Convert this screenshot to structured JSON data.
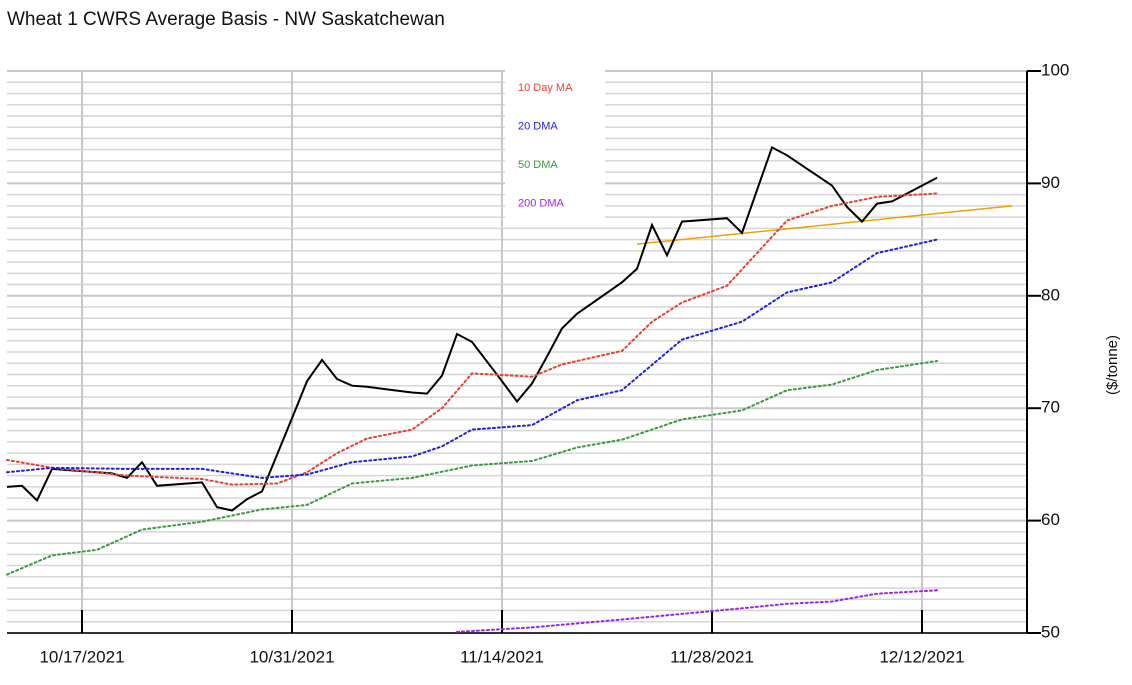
{
  "chart_data": {
    "type": "line",
    "title": "Wheat 1 CWRS Average Basis - NW Saskatchewan",
    "y_axis_label": "($/tonne)",
    "xlim": [
      "2021-10-12",
      "2021-12-19"
    ],
    "xticks": [
      {
        "value": "2021-10-17",
        "label": "10/17/2021"
      },
      {
        "value": "2021-10-31",
        "label": "10/31/2021"
      },
      {
        "value": "2021-11-14",
        "label": "11/14/2021"
      },
      {
        "value": "2021-11-28",
        "label": "11/28/2021"
      },
      {
        "value": "2021-12-12",
        "label": "12/12/2021"
      }
    ],
    "ylim": [
      50,
      100
    ],
    "yticks": [
      50,
      60,
      70,
      80,
      90,
      100
    ],
    "grid": true,
    "minor_grid": true,
    "legend": "top",
    "series": [
      {
        "color": "#000000",
        "style": "solid",
        "x": [
          "2021-10-12",
          "2021-10-13",
          "2021-10-14",
          "2021-10-15",
          "2021-10-19",
          "2021-10-20",
          "2021-10-21",
          "2021-10-22",
          "2021-10-25",
          "2021-10-26",
          "2021-10-27",
          "2021-10-28",
          "2021-10-29",
          "2021-10-31",
          "2021-11-01",
          "2021-11-02",
          "2021-11-03",
          "2021-11-04",
          "2021-11-05",
          "2021-11-08",
          "2021-11-09",
          "2021-11-10",
          "2021-11-11",
          "2021-11-12",
          "2021-11-14",
          "2021-11-15",
          "2021-11-16",
          "2021-11-17",
          "2021-11-18",
          "2021-11-19",
          "2021-11-22",
          "2021-11-23",
          "2021-11-24",
          "2021-11-25",
          "2021-11-26",
          "2021-11-29",
          "2021-11-30",
          "2021-12-02",
          "2021-12-03",
          "2021-12-06",
          "2021-12-07",
          "2021-12-08",
          "2021-12-09",
          "2021-12-10",
          "2021-12-13"
        ],
        "values": [
          63.0,
          63.1,
          61.8,
          64.6,
          64.2,
          63.8,
          65.2,
          63.1,
          63.4,
          61.2,
          60.9,
          61.9,
          62.6,
          69.1,
          72.4,
          74.3,
          72.6,
          72.0,
          71.9,
          71.4,
          71.3,
          72.9,
          76.6,
          75.9,
          72.4,
          70.6,
          72.2,
          74.6,
          77.1,
          78.4,
          81.2,
          82.4,
          86.3,
          83.6,
          86.6,
          86.9,
          85.6,
          93.2,
          92.5,
          89.8,
          87.9,
          86.6,
          88.2,
          88.4,
          90.5
        ]
      },
      {
        "name": "10 Day MA",
        "color": "#e8412f",
        "style": "dotted",
        "x": [
          "2021-10-12",
          "2021-10-15",
          "2021-10-20",
          "2021-10-25",
          "2021-10-27",
          "2021-10-30",
          "2021-11-01",
          "2021-11-03",
          "2021-11-05",
          "2021-11-08",
          "2021-11-10",
          "2021-11-12",
          "2021-11-16",
          "2021-11-18",
          "2021-11-22",
          "2021-11-24",
          "2021-11-26",
          "2021-11-29",
          "2021-12-03",
          "2021-12-06",
          "2021-12-09",
          "2021-12-13"
        ],
        "values": [
          65.4,
          64.7,
          64.0,
          63.7,
          63.2,
          63.3,
          64.3,
          66.0,
          67.3,
          68.1,
          70.0,
          73.1,
          72.8,
          73.9,
          75.1,
          77.7,
          79.4,
          80.9,
          86.7,
          88.0,
          88.8,
          89.1
        ]
      },
      {
        "name": "20 DMA",
        "color": "#1f1fe0",
        "style": "dotted",
        "x": [
          "2021-10-12",
          "2021-10-15",
          "2021-10-20",
          "2021-10-25",
          "2021-10-29",
          "2021-11-01",
          "2021-11-04",
          "2021-11-08",
          "2021-11-10",
          "2021-11-12",
          "2021-11-16",
          "2021-11-19",
          "2021-11-22",
          "2021-11-26",
          "2021-11-30",
          "2021-12-03",
          "2021-12-06",
          "2021-12-09",
          "2021-12-13"
        ],
        "values": [
          64.3,
          64.7,
          64.6,
          64.6,
          63.8,
          64.1,
          65.2,
          65.7,
          66.6,
          68.1,
          68.5,
          70.7,
          71.6,
          76.1,
          77.7,
          80.3,
          81.2,
          83.8,
          85.0
        ]
      },
      {
        "name": "50 DMA",
        "color": "#3c9a3c",
        "style": "dotted",
        "x": [
          "2021-10-12",
          "2021-10-15",
          "2021-10-18",
          "2021-10-21",
          "2021-10-25",
          "2021-10-29",
          "2021-11-01",
          "2021-11-04",
          "2021-11-08",
          "2021-11-12",
          "2021-11-16",
          "2021-11-19",
          "2021-11-22",
          "2021-11-26",
          "2021-11-30",
          "2021-12-03",
          "2021-12-06",
          "2021-12-09",
          "2021-12-13"
        ],
        "values": [
          55.2,
          56.9,
          57.4,
          59.2,
          59.9,
          61.0,
          61.4,
          63.3,
          63.8,
          64.9,
          65.3,
          66.5,
          67.2,
          69.0,
          69.8,
          71.6,
          72.1,
          73.4,
          74.2
        ]
      },
      {
        "name": "200 DMA",
        "color": "#a020f0",
        "style": "dotted",
        "x": [
          "2021-11-11",
          "2021-11-16",
          "2021-11-22",
          "2021-11-26",
          "2021-11-30",
          "2021-12-03",
          "2021-12-06",
          "2021-12-09",
          "2021-12-13"
        ],
        "values": [
          50.1,
          50.5,
          51.2,
          51.7,
          52.2,
          52.6,
          52.8,
          53.5,
          53.8
        ]
      }
    ],
    "trendline": {
      "color": "#f0a000",
      "x": [
        "2021-11-23",
        "2021-12-18"
      ],
      "values": [
        84.6,
        88.0
      ]
    }
  }
}
